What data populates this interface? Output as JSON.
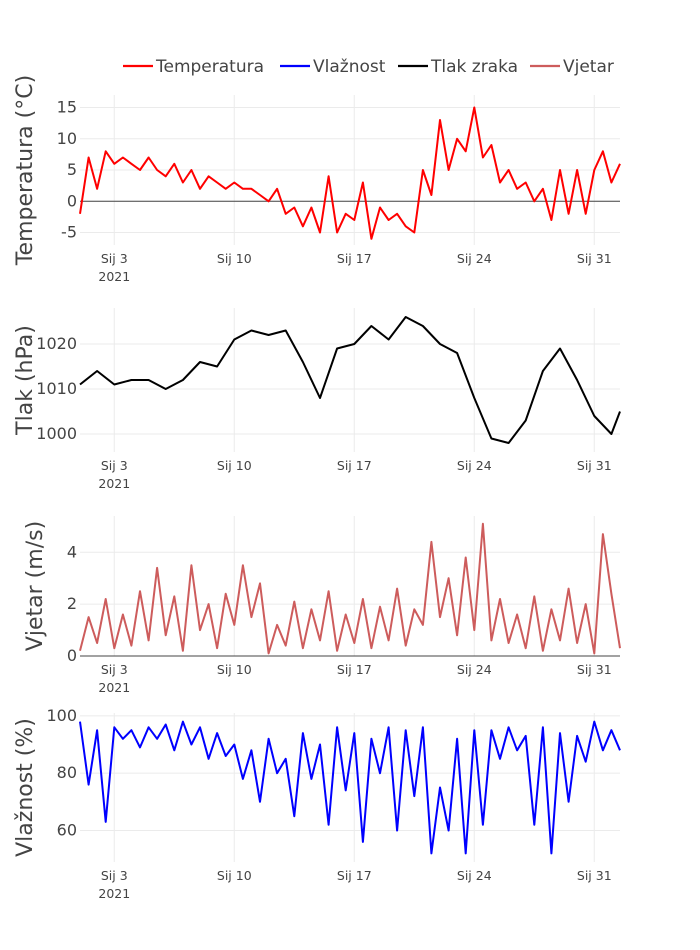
{
  "legend": [
    {
      "name": "Temperatura",
      "color": "#ff0000"
    },
    {
      "name": "Vlažnost",
      "color": "#0000ff"
    },
    {
      "name": "Tlak zraka",
      "color": "#000000"
    },
    {
      "name": "Vjetar",
      "color": "#cd5c5c"
    }
  ],
  "chart_data": [
    {
      "type": "line",
      "ylabel": "Temperatura (°C)",
      "xlim": [
        "2021-01-01 00:00",
        "2021-02-01 12:00"
      ],
      "ylim": [
        -7,
        17
      ],
      "yticks": [
        -5,
        0,
        5,
        10,
        15
      ],
      "xticks": [
        {
          "date": "2021-01-03",
          "label": "Sij 3",
          "sub": "2021"
        },
        {
          "date": "2021-01-10",
          "label": "Sij 10"
        },
        {
          "date": "2021-01-17",
          "label": "Sij 17"
        },
        {
          "date": "2021-01-24",
          "label": "Sij 24"
        },
        {
          "date": "2021-01-31",
          "label": "Sij 31"
        }
      ],
      "zeroline": true,
      "grid": true,
      "series": [
        {
          "name": "Temperatura",
          "color": "#ff0000",
          "x": [
            "2021-01-01 00:00",
            "2021-01-01 12:00",
            "2021-01-02 00:00",
            "2021-01-02 12:00",
            "2021-01-03 00:00",
            "2021-01-03 12:00",
            "2021-01-04 00:00",
            "2021-01-04 12:00",
            "2021-01-05 00:00",
            "2021-01-05 12:00",
            "2021-01-06 00:00",
            "2021-01-06 12:00",
            "2021-01-07 00:00",
            "2021-01-07 12:00",
            "2021-01-08 00:00",
            "2021-01-08 12:00",
            "2021-01-09 00:00",
            "2021-01-09 12:00",
            "2021-01-10 00:00",
            "2021-01-10 12:00",
            "2021-01-11 00:00",
            "2021-01-11 12:00",
            "2021-01-12 00:00",
            "2021-01-12 12:00",
            "2021-01-13 00:00",
            "2021-01-13 12:00",
            "2021-01-14 00:00",
            "2021-01-14 12:00",
            "2021-01-15 00:00",
            "2021-01-15 12:00",
            "2021-01-16 00:00",
            "2021-01-16 12:00",
            "2021-01-17 00:00",
            "2021-01-17 12:00",
            "2021-01-18 00:00",
            "2021-01-18 12:00",
            "2021-01-19 00:00",
            "2021-01-19 12:00",
            "2021-01-20 00:00",
            "2021-01-20 12:00",
            "2021-01-21 00:00",
            "2021-01-21 12:00",
            "2021-01-22 00:00",
            "2021-01-22 12:00",
            "2021-01-23 00:00",
            "2021-01-23 12:00",
            "2021-01-24 00:00",
            "2021-01-24 12:00",
            "2021-01-25 00:00",
            "2021-01-25 12:00",
            "2021-01-26 00:00",
            "2021-01-26 12:00",
            "2021-01-27 00:00",
            "2021-01-27 12:00",
            "2021-01-28 00:00",
            "2021-01-28 12:00",
            "2021-01-29 00:00",
            "2021-01-29 12:00",
            "2021-01-30 00:00",
            "2021-01-30 12:00",
            "2021-01-31 00:00",
            "2021-01-31 12:00",
            "2021-02-01 00:00",
            "2021-02-01 12:00"
          ],
          "y": [
            -2,
            7,
            2,
            8,
            6,
            7,
            6,
            5,
            7,
            5,
            4,
            6,
            3,
            5,
            2,
            4,
            3,
            2,
            3,
            2,
            2,
            1,
            0,
            2,
            -2,
            -1,
            -4,
            -1,
            -5,
            4,
            -5,
            -2,
            -3,
            3,
            -6,
            -1,
            -3,
            -2,
            -4,
            -5,
            5,
            1,
            13,
            5,
            10,
            8,
            15,
            7,
            9,
            3,
            5,
            2,
            3,
            0,
            2,
            -3,
            5,
            -2,
            5,
            -2,
            5,
            8,
            3,
            6
          ]
        }
      ]
    },
    {
      "type": "line",
      "ylabel": "Tlak (hPa)",
      "xlim": [
        "2021-01-01 00:00",
        "2021-02-01 12:00"
      ],
      "ylim": [
        996,
        1028
      ],
      "yticks": [
        1000,
        1010,
        1020
      ],
      "xticks": [
        {
          "date": "2021-01-03",
          "label": "Sij 3",
          "sub": "2021"
        },
        {
          "date": "2021-01-10",
          "label": "Sij 10"
        },
        {
          "date": "2021-01-17",
          "label": "Sij 17"
        },
        {
          "date": "2021-01-24",
          "label": "Sij 24"
        },
        {
          "date": "2021-01-31",
          "label": "Sij 31"
        }
      ],
      "zeroline": false,
      "grid": true,
      "series": [
        {
          "name": "Tlak zraka",
          "color": "#000000",
          "x": [
            "2021-01-01 00:00",
            "2021-01-02 00:00",
            "2021-01-03 00:00",
            "2021-01-04 00:00",
            "2021-01-05 00:00",
            "2021-01-06 00:00",
            "2021-01-07 00:00",
            "2021-01-08 00:00",
            "2021-01-09 00:00",
            "2021-01-10 00:00",
            "2021-01-11 00:00",
            "2021-01-12 00:00",
            "2021-01-13 00:00",
            "2021-01-14 00:00",
            "2021-01-15 00:00",
            "2021-01-16 00:00",
            "2021-01-17 00:00",
            "2021-01-18 00:00",
            "2021-01-19 00:00",
            "2021-01-20 00:00",
            "2021-01-21 00:00",
            "2021-01-22 00:00",
            "2021-01-23 00:00",
            "2021-01-24 00:00",
            "2021-01-25 00:00",
            "2021-01-26 00:00",
            "2021-01-27 00:00",
            "2021-01-28 00:00",
            "2021-01-29 00:00",
            "2021-01-30 00:00",
            "2021-01-31 00:00",
            "2021-02-01 00:00",
            "2021-02-01 12:00"
          ],
          "y": [
            1011,
            1014,
            1011,
            1012,
            1012,
            1010,
            1012,
            1016,
            1015,
            1021,
            1023,
            1022,
            1023,
            1016,
            1008,
            1019,
            1020,
            1024,
            1021,
            1026,
            1024,
            1020,
            1018,
            1008,
            999,
            998,
            1003,
            1014,
            1019,
            1012,
            1004,
            1000,
            1005
          ]
        }
      ]
    },
    {
      "type": "line",
      "ylabel": "Vjetar (m/s)",
      "xlim": [
        "2021-01-01 00:00",
        "2021-02-01 12:00"
      ],
      "ylim": [
        0,
        5.4
      ],
      "yticks": [
        0,
        2,
        4
      ],
      "xticks": [
        {
          "date": "2021-01-03",
          "label": "Sij 3",
          "sub": "2021"
        },
        {
          "date": "2021-01-10",
          "label": "Sij 10"
        },
        {
          "date": "2021-01-17",
          "label": "Sij 17"
        },
        {
          "date": "2021-01-24",
          "label": "Sij 24"
        },
        {
          "date": "2021-01-31",
          "label": "Sij 31"
        }
      ],
      "zeroline": true,
      "grid": true,
      "series": [
        {
          "name": "Vjetar",
          "color": "#cd5c5c",
          "x": [
            "2021-01-01 00:00",
            "2021-01-01 12:00",
            "2021-01-02 00:00",
            "2021-01-02 12:00",
            "2021-01-03 00:00",
            "2021-01-03 12:00",
            "2021-01-04 00:00",
            "2021-01-04 12:00",
            "2021-01-05 00:00",
            "2021-01-05 12:00",
            "2021-01-06 00:00",
            "2021-01-06 12:00",
            "2021-01-07 00:00",
            "2021-01-07 12:00",
            "2021-01-08 00:00",
            "2021-01-08 12:00",
            "2021-01-09 00:00",
            "2021-01-09 12:00",
            "2021-01-10 00:00",
            "2021-01-10 12:00",
            "2021-01-11 00:00",
            "2021-01-11 12:00",
            "2021-01-12 00:00",
            "2021-01-12 12:00",
            "2021-01-13 00:00",
            "2021-01-13 12:00",
            "2021-01-14 00:00",
            "2021-01-14 12:00",
            "2021-01-15 00:00",
            "2021-01-15 12:00",
            "2021-01-16 00:00",
            "2021-01-16 12:00",
            "2021-01-17 00:00",
            "2021-01-17 12:00",
            "2021-01-18 00:00",
            "2021-01-18 12:00",
            "2021-01-19 00:00",
            "2021-01-19 12:00",
            "2021-01-20 00:00",
            "2021-01-20 12:00",
            "2021-01-21 00:00",
            "2021-01-21 12:00",
            "2021-01-22 00:00",
            "2021-01-22 12:00",
            "2021-01-23 00:00",
            "2021-01-23 12:00",
            "2021-01-24 00:00",
            "2021-01-24 12:00",
            "2021-01-25 00:00",
            "2021-01-25 12:00",
            "2021-01-26 00:00",
            "2021-01-26 12:00",
            "2021-01-27 00:00",
            "2021-01-27 12:00",
            "2021-01-28 00:00",
            "2021-01-28 12:00",
            "2021-01-29 00:00",
            "2021-01-29 12:00",
            "2021-01-30 00:00",
            "2021-01-30 12:00",
            "2021-01-31 00:00",
            "2021-01-31 12:00",
            "2021-02-01 00:00",
            "2021-02-01 12:00"
          ],
          "y": [
            0.2,
            1.5,
            0.5,
            2.2,
            0.3,
            1.6,
            0.4,
            2.5,
            0.6,
            3.4,
            0.8,
            2.3,
            0.2,
            3.5,
            1.0,
            2.0,
            0.3,
            2.4,
            1.2,
            3.5,
            1.5,
            2.8,
            0.1,
            1.2,
            0.4,
            2.1,
            0.3,
            1.8,
            0.6,
            2.5,
            0.2,
            1.6,
            0.5,
            2.2,
            0.3,
            1.9,
            0.6,
            2.6,
            0.4,
            1.8,
            1.2,
            4.4,
            1.5,
            3.0,
            0.8,
            3.8,
            1.0,
            5.1,
            0.6,
            2.2,
            0.5,
            1.6,
            0.3,
            2.3,
            0.2,
            1.8,
            0.6,
            2.6,
            0.5,
            2.0,
            0.1,
            4.7,
            2.4,
            0.3
          ]
        }
      ]
    },
    {
      "type": "line",
      "ylabel": "Vlažnost (%)",
      "xlim": [
        "2021-01-01 00:00",
        "2021-02-01 12:00"
      ],
      "ylim": [
        49,
        101
      ],
      "yticks": [
        60,
        80,
        100
      ],
      "xticks": [
        {
          "date": "2021-01-03",
          "label": "Sij 3",
          "sub": "2021"
        },
        {
          "date": "2021-01-10",
          "label": "Sij 10"
        },
        {
          "date": "2021-01-17",
          "label": "Sij 17"
        },
        {
          "date": "2021-01-24",
          "label": "Sij 24"
        },
        {
          "date": "2021-01-31",
          "label": "Sij 31"
        }
      ],
      "zeroline": false,
      "grid": true,
      "series": [
        {
          "name": "Vlažnost",
          "color": "#0000ff",
          "x": [
            "2021-01-01 00:00",
            "2021-01-01 12:00",
            "2021-01-02 00:00",
            "2021-01-02 12:00",
            "2021-01-03 00:00",
            "2021-01-03 12:00",
            "2021-01-04 00:00",
            "2021-01-04 12:00",
            "2021-01-05 00:00",
            "2021-01-05 12:00",
            "2021-01-06 00:00",
            "2021-01-06 12:00",
            "2021-01-07 00:00",
            "2021-01-07 12:00",
            "2021-01-08 00:00",
            "2021-01-08 12:00",
            "2021-01-09 00:00",
            "2021-01-09 12:00",
            "2021-01-10 00:00",
            "2021-01-10 12:00",
            "2021-01-11 00:00",
            "2021-01-11 12:00",
            "2021-01-12 00:00",
            "2021-01-12 12:00",
            "2021-01-13 00:00",
            "2021-01-13 12:00",
            "2021-01-14 00:00",
            "2021-01-14 12:00",
            "2021-01-15 00:00",
            "2021-01-15 12:00",
            "2021-01-16 00:00",
            "2021-01-16 12:00",
            "2021-01-17 00:00",
            "2021-01-17 12:00",
            "2021-01-18 00:00",
            "2021-01-18 12:00",
            "2021-01-19 00:00",
            "2021-01-19 12:00",
            "2021-01-20 00:00",
            "2021-01-20 12:00",
            "2021-01-21 00:00",
            "2021-01-21 12:00",
            "2021-01-22 00:00",
            "2021-01-22 12:00",
            "2021-01-23 00:00",
            "2021-01-23 12:00",
            "2021-01-24 00:00",
            "2021-01-24 12:00",
            "2021-01-25 00:00",
            "2021-01-25 12:00",
            "2021-01-26 00:00",
            "2021-01-26 12:00",
            "2021-01-27 00:00",
            "2021-01-27 12:00",
            "2021-01-28 00:00",
            "2021-01-28 12:00",
            "2021-01-29 00:00",
            "2021-01-29 12:00",
            "2021-01-30 00:00",
            "2021-01-30 12:00",
            "2021-01-31 00:00",
            "2021-01-31 12:00",
            "2021-02-01 00:00",
            "2021-02-01 12:00"
          ],
          "y": [
            98,
            76,
            95,
            63,
            96,
            92,
            95,
            89,
            96,
            92,
            97,
            88,
            98,
            90,
            96,
            85,
            94,
            86,
            90,
            78,
            88,
            70,
            92,
            80,
            85,
            65,
            94,
            78,
            90,
            62,
            96,
            74,
            94,
            56,
            92,
            80,
            96,
            60,
            95,
            72,
            96,
            52,
            75,
            60,
            92,
            52,
            95,
            62,
            95,
            85,
            96,
            88,
            93,
            62,
            96,
            52,
            94,
            70,
            93,
            84,
            98,
            88,
            95,
            88
          ]
        }
      ]
    }
  ]
}
